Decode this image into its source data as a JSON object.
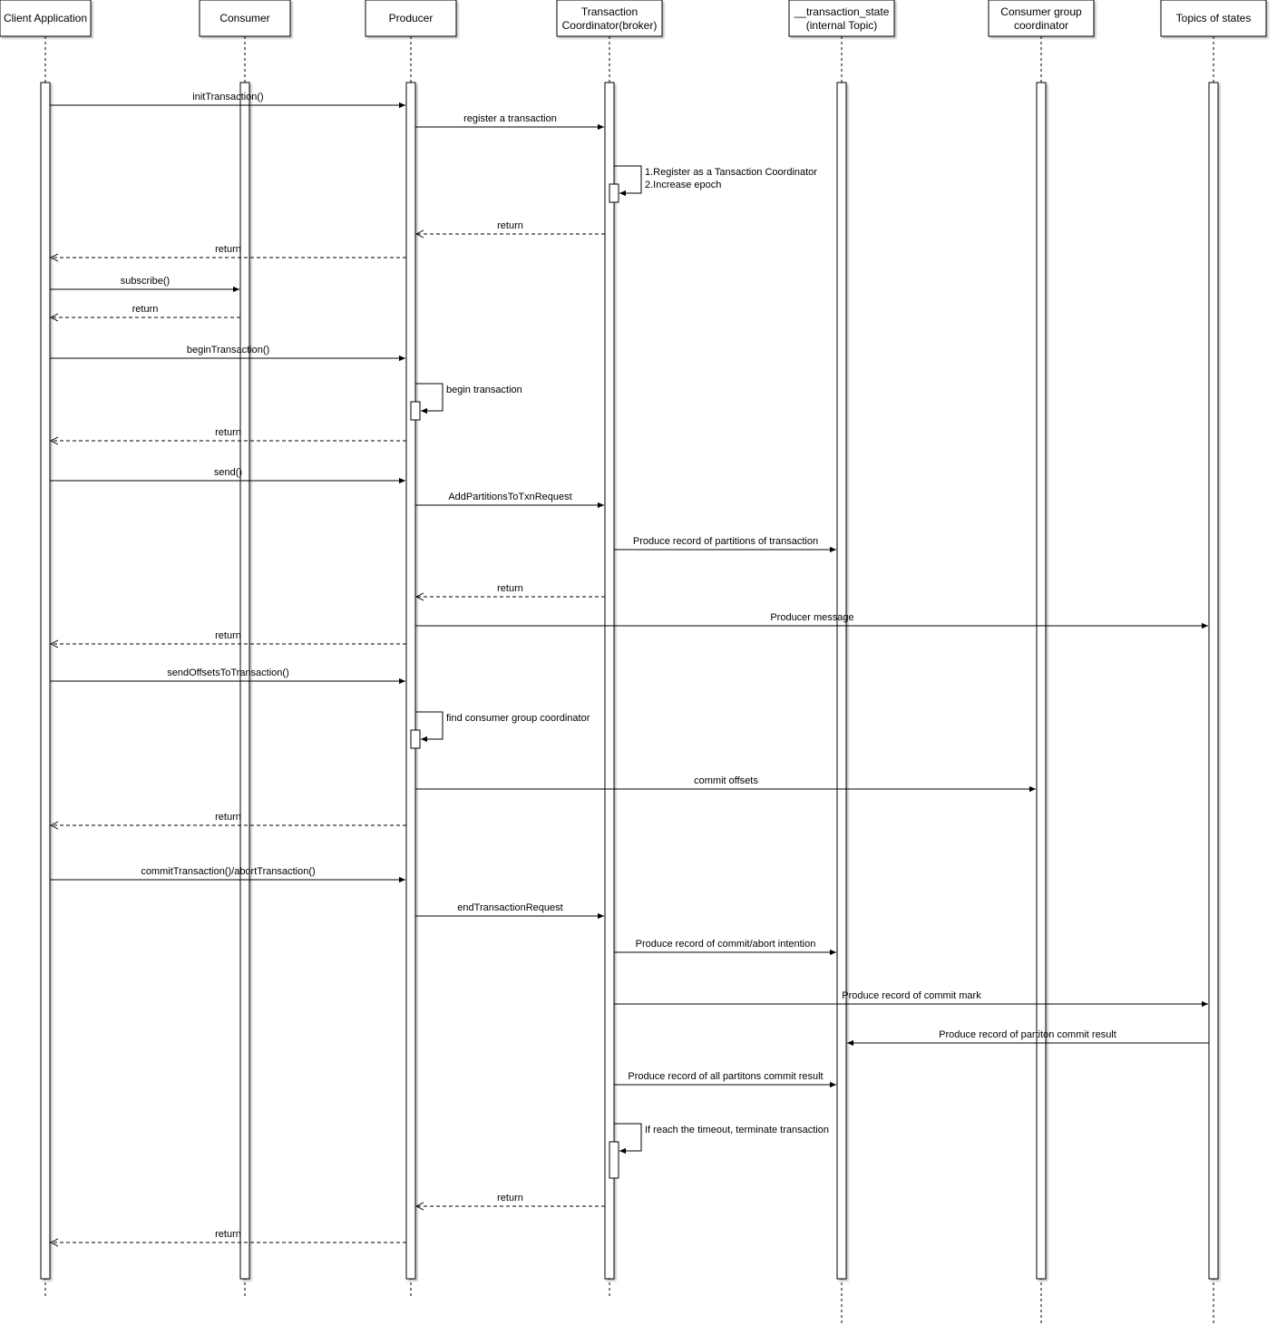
{
  "participants": [
    {
      "id": "client",
      "lines": [
        "Client Application"
      ]
    },
    {
      "id": "consumer",
      "lines": [
        "Consumer"
      ]
    },
    {
      "id": "producer",
      "lines": [
        "Producer"
      ]
    },
    {
      "id": "coordinator",
      "lines": [
        "Transaction",
        "Coordinator(broker)"
      ]
    },
    {
      "id": "txstate",
      "lines": [
        "__transaction_state",
        "(internal Topic)"
      ]
    },
    {
      "id": "cgcoord",
      "lines": [
        "Consumer group",
        "coordinator"
      ]
    },
    {
      "id": "topics",
      "lines": [
        "Topics of states"
      ]
    }
  ],
  "messages": [
    {
      "from": "client",
      "to": "producer",
      "type": "sync",
      "lines": [
        "initTransaction()"
      ]
    },
    {
      "from": "producer",
      "to": "coordinator",
      "type": "sync",
      "lines": [
        "register a transaction"
      ]
    },
    {
      "from": "coordinator",
      "to": "coordinator",
      "type": "self",
      "lines": [
        "1.Register as a Tansaction Coordinator",
        "2.Increase epoch"
      ]
    },
    {
      "from": "coordinator",
      "to": "producer",
      "type": "return",
      "lines": [
        "return"
      ]
    },
    {
      "from": "producer",
      "to": "client",
      "type": "return",
      "lines": [
        "return"
      ]
    },
    {
      "from": "client",
      "to": "consumer",
      "type": "sync",
      "lines": [
        "subscribe()"
      ]
    },
    {
      "from": "consumer",
      "to": "client",
      "type": "return",
      "lines": [
        "return"
      ]
    },
    {
      "from": "client",
      "to": "producer",
      "type": "sync",
      "lines": [
        "beginTransaction()"
      ]
    },
    {
      "from": "producer",
      "to": "producer",
      "type": "self",
      "lines": [
        "begin transaction"
      ]
    },
    {
      "from": "producer",
      "to": "client",
      "type": "return",
      "lines": [
        "return"
      ]
    },
    {
      "from": "client",
      "to": "producer",
      "type": "sync",
      "lines": [
        "send()"
      ]
    },
    {
      "from": "producer",
      "to": "coordinator",
      "type": "sync",
      "lines": [
        "AddPartitionsToTxnRequest"
      ]
    },
    {
      "from": "coordinator",
      "to": "txstate",
      "type": "sync",
      "lines": [
        "Produce record of partitions of transaction"
      ]
    },
    {
      "from": "coordinator",
      "to": "producer",
      "type": "return",
      "lines": [
        "return"
      ]
    },
    {
      "from": "producer",
      "to": "topics",
      "type": "sync",
      "lines": [
        "Producer message"
      ]
    },
    {
      "from": "producer",
      "to": "client",
      "type": "return",
      "lines": [
        "return"
      ]
    },
    {
      "from": "client",
      "to": "producer",
      "type": "sync",
      "lines": [
        "sendOffsetsToTransaction()"
      ]
    },
    {
      "from": "producer",
      "to": "producer",
      "type": "self",
      "lines": [
        "find consumer group coordinator"
      ]
    },
    {
      "from": "producer",
      "to": "cgcoord",
      "type": "sync",
      "lines": [
        "commit offsets"
      ]
    },
    {
      "from": "producer",
      "to": "client",
      "type": "return",
      "lines": [
        "return"
      ]
    },
    {
      "from": "client",
      "to": "producer",
      "type": "sync",
      "lines": [
        "commitTransaction()/abortTransaction()"
      ]
    },
    {
      "from": "producer",
      "to": "coordinator",
      "type": "sync",
      "lines": [
        "endTransactionRequest"
      ]
    },
    {
      "from": "coordinator",
      "to": "txstate",
      "type": "sync",
      "lines": [
        "Produce record of commit/abort intention"
      ]
    },
    {
      "from": "coordinator",
      "to": "topics",
      "type": "sync",
      "lines": [
        "Produce record of commit mark"
      ]
    },
    {
      "from": "topics",
      "to": "txstate",
      "type": "sync",
      "lines": [
        "Produce record of partiton commit result"
      ]
    },
    {
      "from": "coordinator",
      "to": "txstate",
      "type": "sync",
      "lines": [
        "Produce record of all partitons commit result"
      ]
    },
    {
      "from": "coordinator",
      "to": "coordinator",
      "type": "self",
      "lines": [
        "If reach the timeout, terminate transaction"
      ]
    },
    {
      "from": "coordinator",
      "to": "producer",
      "type": "return",
      "lines": [
        "return"
      ]
    },
    {
      "from": "producer",
      "to": "client",
      "type": "return",
      "lines": [
        "return"
      ]
    }
  ]
}
